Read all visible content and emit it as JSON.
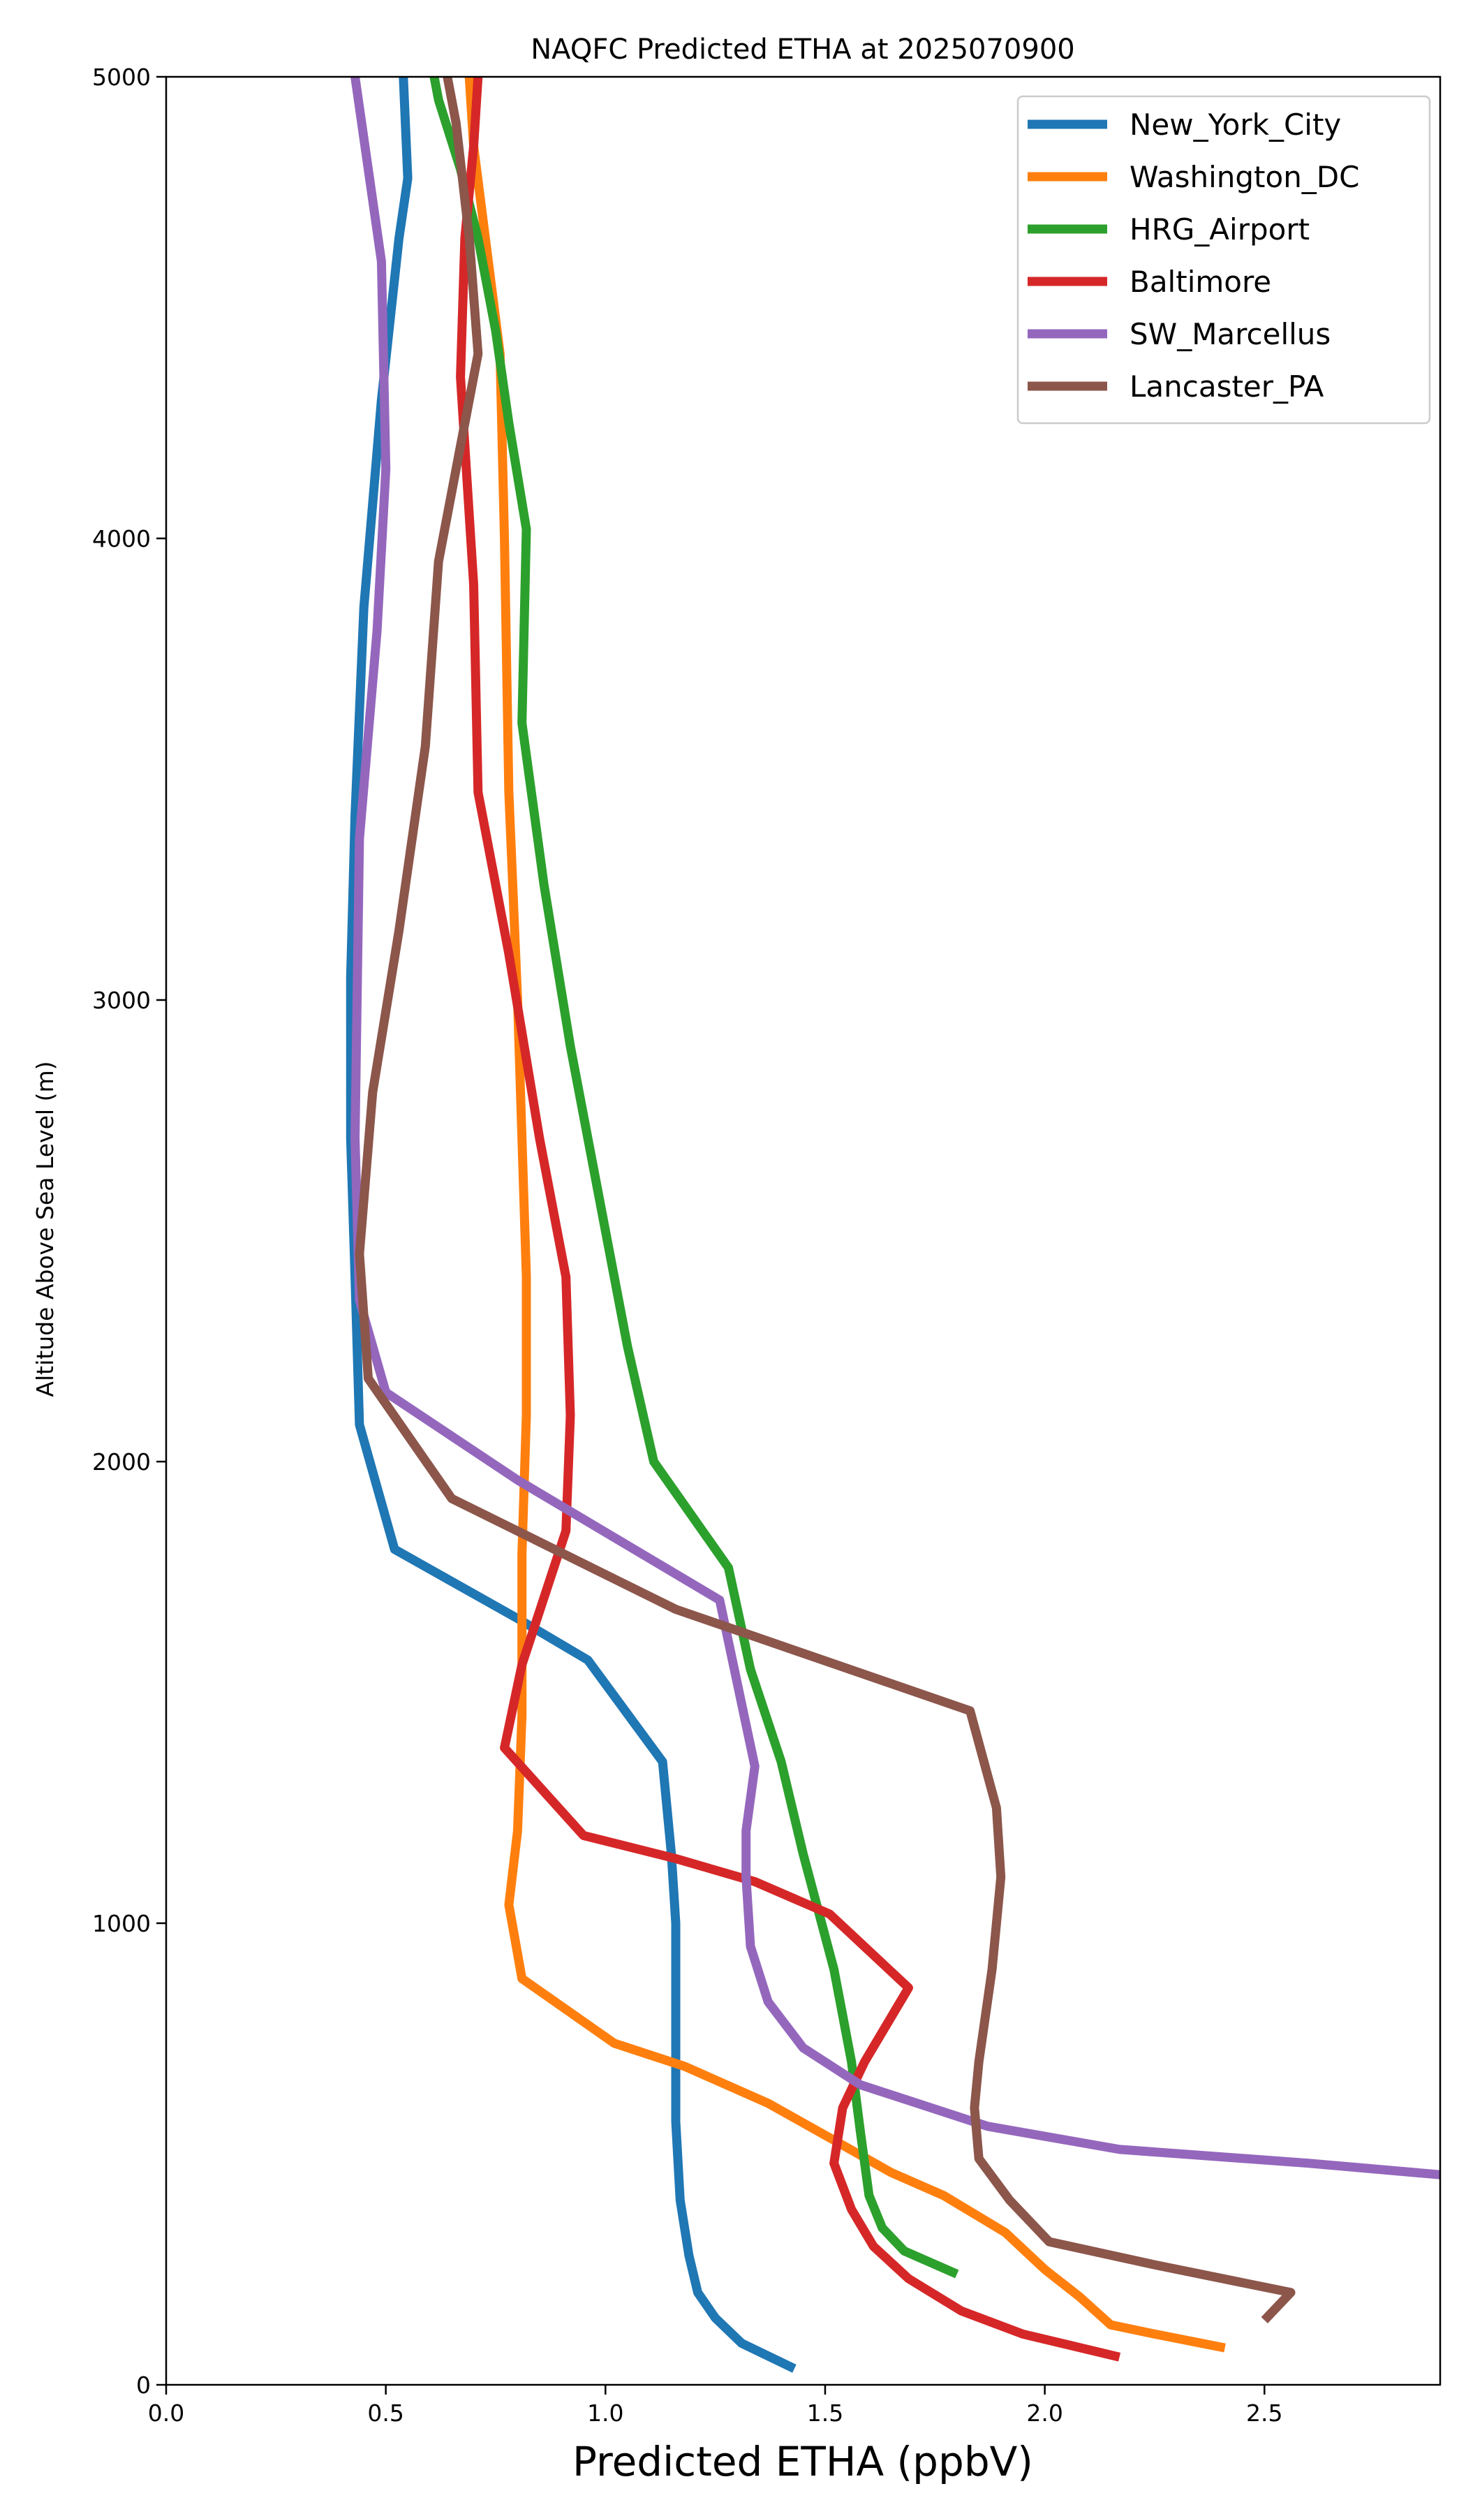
{
  "chart_data": {
    "type": "line",
    "title": "NAQFC Predicted ETHA at 2025070900",
    "xlabel": "Predicted ETHA (ppbV)",
    "ylabel": "Altitude Above Sea Level (m)",
    "xlim": [
      0,
      2.9
    ],
    "ylim": [
      0,
      5000
    ],
    "xticks": [
      0,
      0.5,
      1.0,
      1.5,
      2.0,
      2.5
    ],
    "xtick_labels": [
      "0.0",
      "0.5",
      "1.0",
      "1.5",
      "2.0",
      "2.5"
    ],
    "yticks": [
      0,
      1000,
      2000,
      3000,
      4000,
      5000
    ],
    "ytick_labels": [
      "0",
      "1000",
      "2000",
      "3000",
      "4000",
      "5000"
    ],
    "grid": false,
    "legend_position": "top-right",
    "series": [
      {
        "name": "New_York_City",
        "color": "#1f77b4",
        "points": [
          [
            1.43,
            35
          ],
          [
            1.31,
            90
          ],
          [
            1.25,
            145
          ],
          [
            1.21,
            200
          ],
          [
            1.19,
            280
          ],
          [
            1.17,
            400
          ],
          [
            1.16,
            570
          ],
          [
            1.16,
            830
          ],
          [
            1.16,
            1000
          ],
          [
            1.15,
            1150
          ],
          [
            1.13,
            1350
          ],
          [
            0.96,
            1570
          ],
          [
            0.8,
            1660
          ],
          [
            0.52,
            1810
          ],
          [
            0.44,
            2080
          ],
          [
            0.43,
            2400
          ],
          [
            0.42,
            2700
          ],
          [
            0.42,
            3050
          ],
          [
            0.43,
            3400
          ],
          [
            0.45,
            3850
          ],
          [
            0.49,
            4300
          ],
          [
            0.53,
            4650
          ],
          [
            0.55,
            4780
          ],
          [
            0.54,
            5000
          ]
        ]
      },
      {
        "name": "Washington_DC",
        "color": "#ff7f0e",
        "points": [
          [
            2.41,
            80
          ],
          [
            2.25,
            110
          ],
          [
            2.15,
            130
          ],
          [
            2.08,
            190
          ],
          [
            2.0,
            250
          ],
          [
            1.91,
            330
          ],
          [
            1.77,
            410
          ],
          [
            1.65,
            460
          ],
          [
            1.52,
            530
          ],
          [
            1.37,
            610
          ],
          [
            1.18,
            690
          ],
          [
            1.02,
            740
          ],
          [
            0.81,
            880
          ],
          [
            0.78,
            1040
          ],
          [
            0.8,
            1200
          ],
          [
            0.81,
            1450
          ],
          [
            0.81,
            1800
          ],
          [
            0.82,
            2100
          ],
          [
            0.82,
            2400
          ],
          [
            0.81,
            2700
          ],
          [
            0.8,
            3000
          ],
          [
            0.78,
            3450
          ],
          [
            0.77,
            4000
          ],
          [
            0.76,
            4400
          ],
          [
            0.74,
            4550
          ],
          [
            0.72,
            4700
          ],
          [
            0.7,
            4850
          ],
          [
            0.69,
            5000
          ]
        ]
      },
      {
        "name": "HRG_Airport",
        "color": "#2ca02c",
        "points": [
          [
            1.8,
            240
          ],
          [
            1.68,
            290
          ],
          [
            1.63,
            340
          ],
          [
            1.6,
            410
          ],
          [
            1.58,
            550
          ],
          [
            1.56,
            700
          ],
          [
            1.52,
            900
          ],
          [
            1.45,
            1150
          ],
          [
            1.4,
            1350
          ],
          [
            1.33,
            1550
          ],
          [
            1.28,
            1770
          ],
          [
            1.11,
            2000
          ],
          [
            1.05,
            2250
          ],
          [
            0.99,
            2550
          ],
          [
            0.92,
            2900
          ],
          [
            0.86,
            3250
          ],
          [
            0.81,
            3600
          ],
          [
            0.82,
            4020
          ],
          [
            0.78,
            4250
          ],
          [
            0.75,
            4450
          ],
          [
            0.71,
            4650
          ],
          [
            0.67,
            4800
          ],
          [
            0.62,
            4950
          ],
          [
            0.61,
            5000
          ]
        ]
      },
      {
        "name": "Baltimore",
        "color": "#d62728",
        "points": [
          [
            2.17,
            60
          ],
          [
            1.95,
            110
          ],
          [
            1.81,
            160
          ],
          [
            1.69,
            230
          ],
          [
            1.61,
            300
          ],
          [
            1.56,
            380
          ],
          [
            1.52,
            480
          ],
          [
            1.54,
            600
          ],
          [
            1.59,
            700
          ],
          [
            1.69,
            860
          ],
          [
            1.51,
            1020
          ],
          [
            1.34,
            1090
          ],
          [
            1.16,
            1140
          ],
          [
            0.95,
            1190
          ],
          [
            0.77,
            1380
          ],
          [
            0.81,
            1560
          ],
          [
            0.91,
            1850
          ],
          [
            0.92,
            2100
          ],
          [
            0.91,
            2400
          ],
          [
            0.85,
            2700
          ],
          [
            0.78,
            3100
          ],
          [
            0.71,
            3450
          ],
          [
            0.7,
            3900
          ],
          [
            0.67,
            4350
          ],
          [
            0.68,
            4650
          ],
          [
            0.7,
            4850
          ],
          [
            0.71,
            5000
          ]
        ]
      },
      {
        "name": "SW_Marcellus",
        "color": "#9467bd",
        "points": [
          [
            2.9,
            455
          ],
          [
            2.6,
            480
          ],
          [
            2.17,
            510
          ],
          [
            1.87,
            560
          ],
          [
            1.58,
            650
          ],
          [
            1.45,
            730
          ],
          [
            1.37,
            830
          ],
          [
            1.33,
            950
          ],
          [
            1.32,
            1100
          ],
          [
            1.32,
            1200
          ],
          [
            1.34,
            1340
          ],
          [
            1.26,
            1700
          ],
          [
            0.8,
            1960
          ],
          [
            0.5,
            2150
          ],
          [
            0.44,
            2350
          ],
          [
            0.43,
            2700
          ],
          [
            0.44,
            3350
          ],
          [
            0.48,
            3800
          ],
          [
            0.5,
            4150
          ],
          [
            0.49,
            4600
          ],
          [
            0.43,
            5000
          ]
        ]
      },
      {
        "name": "Lancaster_PA",
        "color": "#8c564b",
        "points": [
          [
            2.5,
            140
          ],
          [
            2.56,
            200
          ],
          [
            2.25,
            260
          ],
          [
            2.01,
            310
          ],
          [
            1.92,
            400
          ],
          [
            1.85,
            490
          ],
          [
            1.84,
            600
          ],
          [
            1.85,
            700
          ],
          [
            1.88,
            900
          ],
          [
            1.9,
            1100
          ],
          [
            1.89,
            1250
          ],
          [
            1.83,
            1460
          ],
          [
            1.16,
            1680
          ],
          [
            0.65,
            1920
          ],
          [
            0.46,
            2180
          ],
          [
            0.44,
            2450
          ],
          [
            0.47,
            2800
          ],
          [
            0.53,
            3150
          ],
          [
            0.59,
            3550
          ],
          [
            0.62,
            3950
          ],
          [
            0.66,
            4150
          ],
          [
            0.71,
            4400
          ],
          [
            0.69,
            4650
          ],
          [
            0.66,
            4900
          ],
          [
            0.64,
            5000
          ]
        ]
      }
    ]
  }
}
